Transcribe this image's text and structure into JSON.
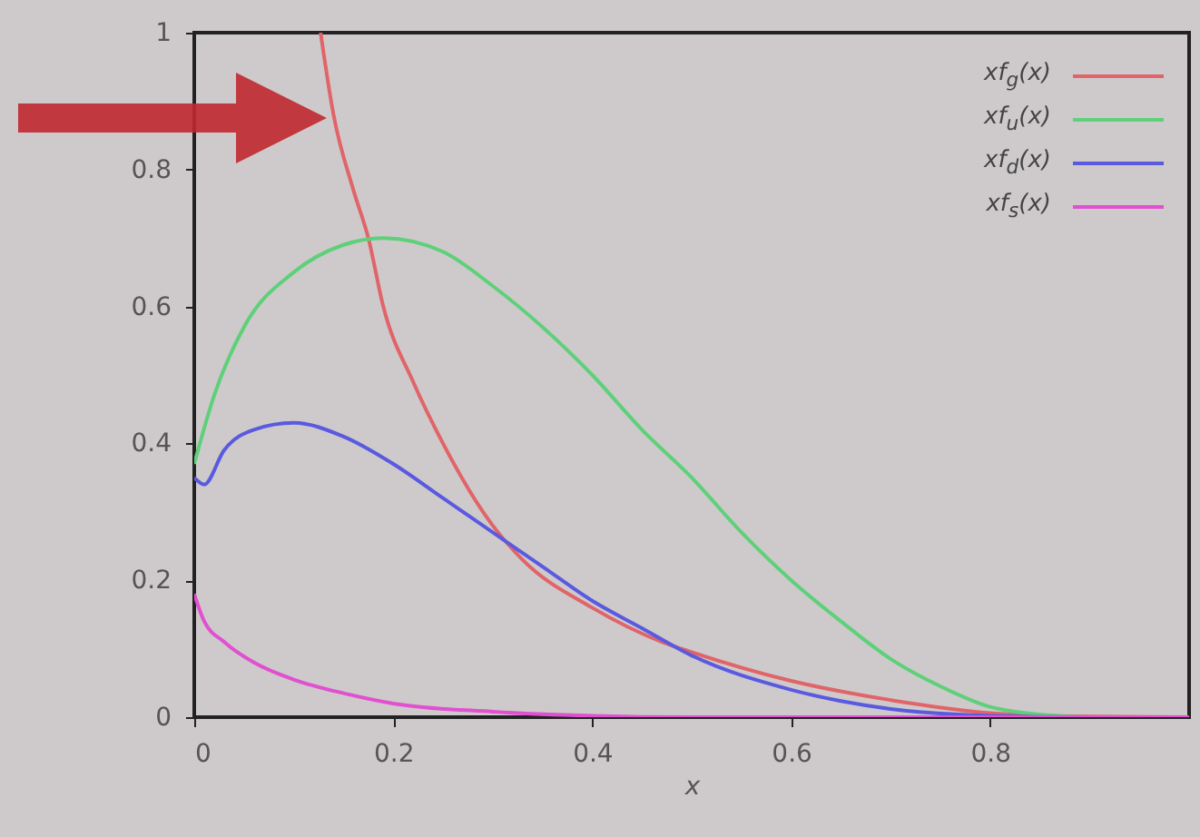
{
  "chart_data": {
    "type": "line",
    "xlabel": "x",
    "xlim": [
      0,
      1
    ],
    "ylim": [
      0,
      1
    ],
    "xticks": [
      0,
      0.2,
      0.4,
      0.6,
      0.8
    ],
    "yticks": [
      0,
      0.2,
      0.4,
      0.6,
      0.8,
      1
    ],
    "grid": false,
    "legend": "top right",
    "line_style": "solid",
    "marker": "none",
    "series": [
      {
        "name": "xf$_{g}$(x)",
        "color": "#e06468",
        "x": [
          0.127,
          0.14,
          0.16,
          0.175,
          0.19,
          0.22,
          0.25,
          0.3,
          0.33,
          0.4,
          0.47,
          0.5,
          0.6,
          0.7,
          0.8,
          0.9,
          1
        ],
        "values": [
          1.0,
          0.88,
          0.77,
          0.7,
          0.6,
          0.49,
          0.4,
          0.28,
          0.23,
          0.16,
          0.11,
          0.095,
          0.053,
          0.025,
          0.006,
          0.001,
          0
        ]
      },
      {
        "name": "xf$_{u}$(x)",
        "color": "#5fd07a",
        "x": [
          0,
          0.02,
          0.05,
          0.1,
          0.15,
          0.19,
          0.25,
          0.3,
          0.35,
          0.4,
          0.45,
          0.5,
          0.55,
          0.6,
          0.65,
          0.7,
          0.75,
          0.8,
          0.85,
          0.9,
          1
        ],
        "values": [
          0.37,
          0.47,
          0.57,
          0.65,
          0.69,
          0.7,
          0.68,
          0.63,
          0.57,
          0.5,
          0.42,
          0.35,
          0.27,
          0.2,
          0.14,
          0.085,
          0.045,
          0.015,
          0.004,
          0,
          0
        ]
      },
      {
        "name": "xf$_{d}$(x)",
        "color": "#5a5ae0",
        "x": [
          0,
          0.01,
          0.03,
          0.06,
          0.1,
          0.15,
          0.2,
          0.25,
          0.3,
          0.35,
          0.4,
          0.45,
          0.5,
          0.6,
          0.7,
          0.8,
          0.9,
          1
        ],
        "values": [
          0.35,
          0.34,
          0.39,
          0.42,
          0.43,
          0.41,
          0.37,
          0.32,
          0.27,
          0.22,
          0.17,
          0.13,
          0.09,
          0.04,
          0.012,
          0.002,
          0,
          0
        ]
      },
      {
        "name": "xf$_{s}$(x)",
        "color": "#e050d0",
        "x": [
          0,
          0.01,
          0.03,
          0.06,
          0.1,
          0.15,
          0.2,
          0.3,
          0.4,
          0.5,
          1
        ],
        "values": [
          0.18,
          0.14,
          0.11,
          0.08,
          0.055,
          0.035,
          0.02,
          0.008,
          0.002,
          0,
          0
        ]
      }
    ]
  }
}
